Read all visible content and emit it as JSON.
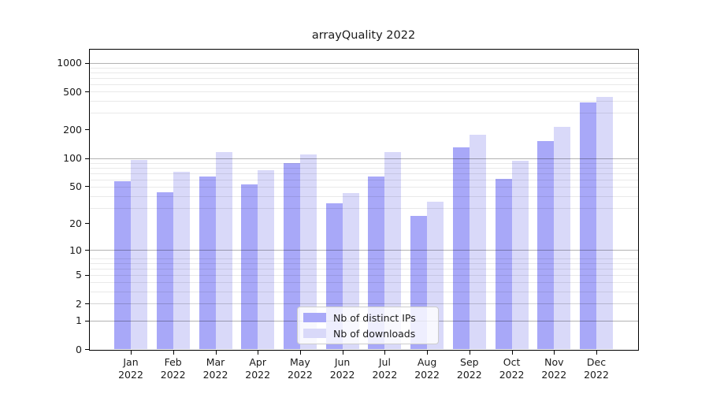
{
  "chart_data": {
    "type": "bar",
    "title": "arrayQuality 2022",
    "categories": [
      "Jan 2022",
      "Feb 2022",
      "Mar 2022",
      "Apr 2022",
      "May 2022",
      "Jun 2022",
      "Jul 2022",
      "Aug 2022",
      "Sep 2022",
      "Oct 2022",
      "Nov 2022",
      "Dec 2022"
    ],
    "series": [
      {
        "name": "Nb of distinct IPs",
        "color": "#a8a8f8",
        "values": [
          57,
          43,
          64,
          52,
          89,
          33,
          64,
          24,
          130,
          60,
          151,
          385
        ]
      },
      {
        "name": "Nb of downloads",
        "color": "#d9d9f9",
        "values": [
          96,
          72,
          115,
          74,
          109,
          42,
          115,
          34,
          176,
          94,
          214,
          444
        ]
      }
    ],
    "xlabel": "",
    "ylabel": "",
    "yscale": "log1p",
    "yticks": [
      0,
      1,
      2,
      5,
      10,
      20,
      50,
      100,
      200,
      500,
      1000
    ],
    "ylim": [
      0,
      1400
    ],
    "grid": "on",
    "legend_position": "lower center",
    "colors": {
      "background": "#ffffff",
      "axis_frame": "#000000",
      "grid_minor": "#e9e9e9",
      "grid_major": "#b3b3b3",
      "text": "#1a1a1a",
      "legend_border": "#cccccc"
    }
  }
}
